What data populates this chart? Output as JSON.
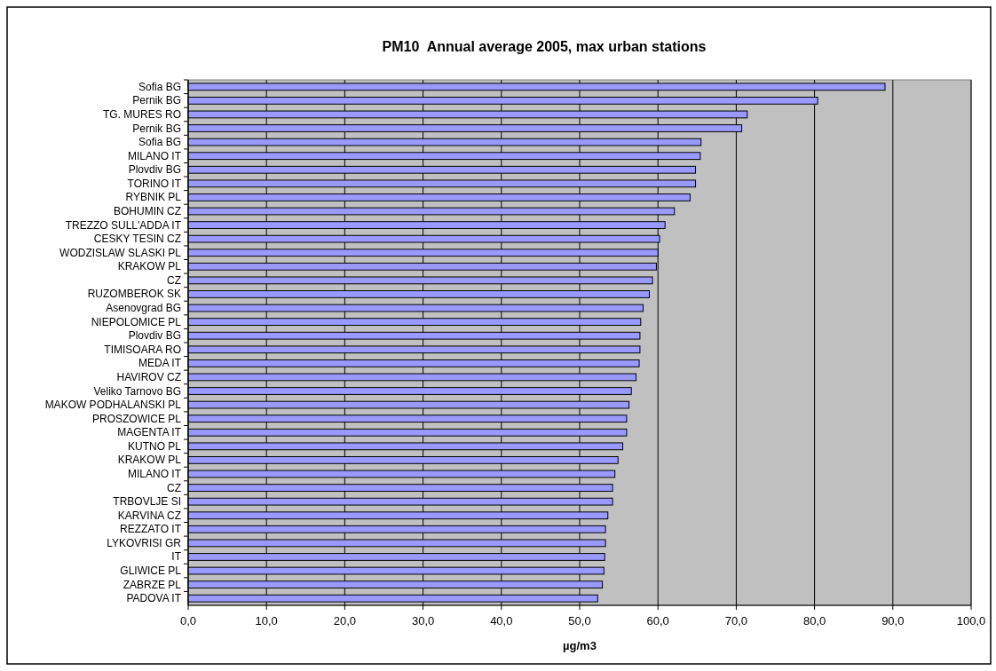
{
  "chart_data": {
    "type": "bar",
    "orientation": "horizontal",
    "title": "PM10  Annual average 2005, max urban stations",
    "xlabel": "µg/m3",
    "categories": [
      "Sofia BG",
      "Pernik BG",
      "TG. MURES RO",
      "Pernik BG",
      "Sofia BG",
      "MILANO IT",
      "Plovdiv BG",
      "TORINO IT",
      "RYBNIK PL",
      "BOHUMIN CZ",
      "TREZZO SULL'ADDA IT",
      "CESKY TESIN CZ",
      "WODZISLAW SLASKI PL",
      "KRAKOW PL",
      "CZ",
      "RUZOMBEROK SK",
      "Asenovgrad BG",
      "NIEPOLOMICE PL",
      "Plovdiv BG",
      "TIMISOARA RO",
      "MEDA IT",
      "HAVIROV CZ",
      "Veliko Tarnovo BG",
      "MAKOW PODHALANSKI PL",
      "PROSZOWICE PL",
      "MAGENTA IT",
      "KUTNO PL",
      "KRAKOW PL",
      "MILANO IT",
      "CZ",
      "TRBOVLJE SI",
      "KARVINA CZ",
      "REZZATO IT",
      "LYKOVRISI GR",
      "IT",
      "GLIWICE PL",
      "ZABRZE PL",
      "PADOVA IT"
    ],
    "values": [
      89.0,
      80.4,
      71.4,
      70.7,
      65.5,
      65.4,
      64.8,
      64.8,
      64.1,
      62.1,
      60.9,
      60.2,
      60.0,
      59.8,
      59.3,
      58.9,
      58.1,
      57.8,
      57.7,
      57.7,
      57.6,
      57.2,
      56.6,
      56.3,
      56.0,
      56.0,
      55.5,
      54.9,
      54.5,
      54.2,
      54.2,
      53.6,
      53.3,
      53.3,
      53.2,
      53.1,
      52.9,
      52.3
    ],
    "color": "#9999ff",
    "xlim": [
      0,
      100
    ],
    "xticks": [
      {
        "value": 0,
        "label": "0,0"
      },
      {
        "value": 10,
        "label": "10,0"
      },
      {
        "value": 20,
        "label": "20,0"
      },
      {
        "value": 30,
        "label": "30,0"
      },
      {
        "value": 40,
        "label": "40,0"
      },
      {
        "value": 50,
        "label": "50,0"
      },
      {
        "value": 60,
        "label": "60,0"
      },
      {
        "value": 70,
        "label": "70,0"
      },
      {
        "value": 80,
        "label": "80,0"
      },
      {
        "value": 90,
        "label": "90,0"
      },
      {
        "value": 100,
        "label": "100,0"
      }
    ],
    "grid": "x"
  }
}
